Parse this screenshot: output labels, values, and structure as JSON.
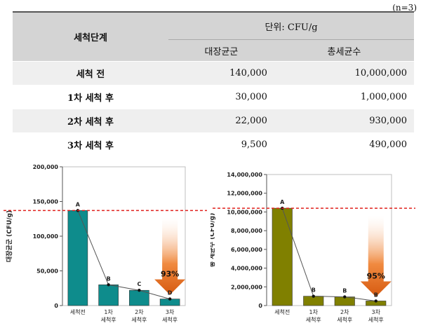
{
  "note": "(n=3)",
  "table": {
    "stage_header": "세척단계",
    "unit_header": "단위: CFU/g",
    "col1_header": "대장균군",
    "col2_header": "총세균수",
    "rows": [
      {
        "label": "세척 전",
        "col1": "140,000",
        "col2": "10,000,000"
      },
      {
        "label": "1차 세척 후",
        "col1": "30,000",
        "col2": "1,000,000"
      },
      {
        "label": "2차 세척 후",
        "col1": "22,000",
        "col2": "930,000"
      },
      {
        "label": "3차 세척 후",
        "col1": "9,500",
        "col2": "490,000"
      }
    ]
  },
  "chart_data": [
    {
      "type": "bar",
      "ylabel": "대장균군 (CFU/g)",
      "ylim": [
        0,
        200000
      ],
      "yticks": [
        0,
        50000,
        100000,
        150000,
        200000
      ],
      "ytick_labels": [
        "0",
        "50,000",
        "100,000",
        "150,000",
        "200,000"
      ],
      "categories": [
        [
          "세척전"
        ],
        [
          "1차",
          "세척후"
        ],
        [
          "2차",
          "세척후"
        ],
        [
          "3차",
          "세척후"
        ]
      ],
      "values": [
        137000,
        30000,
        22000,
        9500
      ],
      "letters": [
        "A",
        "B",
        "C",
        "D"
      ],
      "reference_line": 137000,
      "reduction_label": "93%",
      "bar_color": "#0e8c8c"
    },
    {
      "type": "bar",
      "ylabel": "총 세균수 (CFU/g)",
      "ylim": [
        0,
        14000000
      ],
      "yticks": [
        0,
        2000000,
        4000000,
        6000000,
        8000000,
        10000000,
        12000000,
        14000000
      ],
      "ytick_labels": [
        "0",
        "2,000,000",
        "4,000,000",
        "6,000,000",
        "8,000,000",
        "10,000,000",
        "12,000,000",
        "14,000,000"
      ],
      "categories": [
        [
          "세척전"
        ],
        [
          "1차",
          "세척후"
        ],
        [
          "2차",
          "세척후"
        ],
        [
          "3차",
          "세척후"
        ]
      ],
      "values": [
        10400000,
        1000000,
        930000,
        490000
      ],
      "letters": [
        "A",
        "B",
        "B",
        "B"
      ],
      "reference_line": 10400000,
      "reduction_label": "95%",
      "bar_color": "#808000"
    }
  ]
}
